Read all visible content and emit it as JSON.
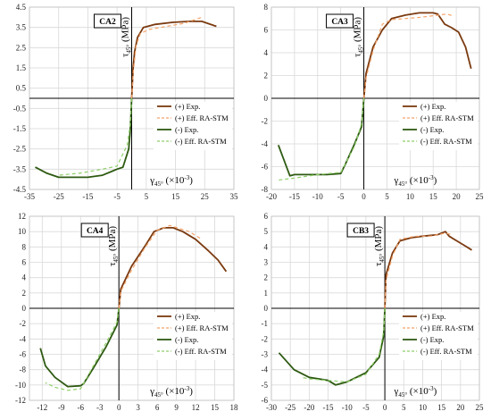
{
  "colors": {
    "pos_exp": "#7b3a10",
    "pos_eff": "#f4a46a",
    "neg_exp": "#2e5a12",
    "neg_eff": "#8fcf6a",
    "grid": "#d9d9d9",
    "axis": "#000000"
  },
  "chart_data": [
    {
      "type": "line",
      "label": "CA2",
      "ylabel_main": "τ",
      "ylabel_sub": "45°",
      "ylabel_unit": " (MPa)",
      "xlabel_main": "γ",
      "xlabel_sub": "45°",
      "xlabel_unit": " (×10",
      "xlabel_exp": "-3",
      "xlabel_close": ")",
      "xlim": [
        -35,
        35
      ],
      "ylim": [
        -4.5,
        4.5
      ],
      "xticks": [
        -35,
        -25,
        -15,
        -5,
        5,
        15,
        25,
        35
      ],
      "yticks": [
        -4.5,
        -3.5,
        -2.5,
        -1.5,
        -0.5,
        0.5,
        1.5,
        2.5,
        3.5,
        4.5
      ],
      "legend": {
        "show": true,
        "placement": "center-right"
      },
      "series": [
        {
          "name": "(+) Exp.",
          "role": "pos_exp",
          "x": [
            0,
            0.5,
            1,
            2,
            4,
            8,
            14,
            20,
            24,
            29
          ],
          "y": [
            0,
            1.5,
            2.3,
            3.0,
            3.5,
            3.65,
            3.75,
            3.8,
            3.8,
            3.55
          ]
        },
        {
          "name": "(+) Eff. RA-STM",
          "role": "pos_eff",
          "x": [
            0,
            0.5,
            1.5,
            3,
            6,
            12,
            18,
            24
          ],
          "y": [
            0,
            1.2,
            2.6,
            3.2,
            3.4,
            3.55,
            3.7,
            4.0
          ]
        },
        {
          "name": "(-) Exp.",
          "role": "neg_exp",
          "x": [
            0,
            -0.5,
            -1,
            -3,
            -5,
            -10,
            -15,
            -20,
            -25,
            -29,
            -33
          ],
          "y": [
            0,
            -1.6,
            -2.5,
            -3.4,
            -3.5,
            -3.8,
            -3.9,
            -3.9,
            -3.9,
            -3.7,
            -3.4
          ]
        },
        {
          "name": "(-) Eff. RA-STM",
          "role": "neg_eff",
          "x": [
            0,
            -0.5,
            -1.5,
            -5,
            -10,
            -18,
            -25
          ],
          "y": [
            0,
            -1.3,
            -2.3,
            -3.35,
            -3.5,
            -3.7,
            -3.8
          ]
        }
      ]
    },
    {
      "type": "line",
      "label": "CA3",
      "ylabel_main": "τ",
      "ylabel_sub": "45°",
      "ylabel_unit": " (MPa)",
      "xlabel_main": "γ",
      "xlabel_sub": "45°",
      "xlabel_unit": " (×10",
      "xlabel_exp": "-3",
      "xlabel_close": ")",
      "xlim": [
        -20,
        25
      ],
      "ylim": [
        -8,
        8
      ],
      "xticks": [
        -20,
        -15,
        -10,
        -5,
        0,
        5,
        10,
        15,
        20,
        25
      ],
      "yticks": [
        -8,
        -6,
        -4,
        -2,
        0,
        2,
        4,
        6,
        8
      ],
      "legend": {
        "show": true,
        "placement": "center-right"
      },
      "series": [
        {
          "name": "(+) Exp.",
          "role": "pos_exp",
          "x": [
            0,
            0.5,
            2,
            4,
            6,
            9,
            12,
            15,
            16,
            17.5,
            19,
            20.5,
            22,
            23.2
          ],
          "y": [
            0,
            2.2,
            4.5,
            6.0,
            7.0,
            7.3,
            7.5,
            7.5,
            7.4,
            6.5,
            6.2,
            5.8,
            4.5,
            2.6
          ]
        },
        {
          "name": "(+) Eff. RA-STM",
          "role": "pos_eff",
          "x": [
            0,
            0.5,
            2,
            4,
            6,
            12,
            18,
            19.5
          ],
          "y": [
            0,
            1.8,
            4.2,
            6.5,
            6.9,
            7.1,
            7.4,
            7.2
          ]
        },
        {
          "name": "(-) Exp.",
          "role": "neg_exp",
          "x": [
            0,
            -0.5,
            -2,
            -4,
            -5,
            -8,
            -12,
            -15,
            -16,
            -18.5
          ],
          "y": [
            0,
            -2.5,
            -4.0,
            -5.8,
            -6.6,
            -6.7,
            -6.7,
            -6.7,
            -6.8,
            -4.1
          ]
        },
        {
          "name": "(-) Eff. RA-STM",
          "role": "neg_eff",
          "x": [
            0,
            -0.5,
            -2,
            -5,
            -10,
            -15,
            -19
          ],
          "y": [
            0,
            -2.2,
            -4.2,
            -6.5,
            -6.7,
            -7.0,
            -7.2
          ]
        }
      ]
    },
    {
      "type": "line",
      "label": "CA4",
      "ylabel_main": "τ",
      "ylabel_sub": "45°",
      "ylabel_unit": " (MPa)",
      "xlabel_main": "γ",
      "xlabel_sub": "45°",
      "xlabel_unit": " (×10",
      "xlabel_exp": "-3",
      "xlabel_close": ")",
      "xlim": [
        -14,
        18
      ],
      "ylim": [
        -12,
        12
      ],
      "xticks": [
        -12,
        -9,
        -6,
        -3,
        0,
        3,
        6,
        9,
        12,
        15,
        18
      ],
      "yticks": [
        -12,
        -10,
        -8,
        -6,
        -4,
        -2,
        0,
        2,
        4,
        6,
        8,
        10,
        12
      ],
      "legend": {
        "show": true,
        "placement": "center-right"
      },
      "series": [
        {
          "name": "(+) Exp.",
          "role": "pos_exp",
          "x": [
            0,
            0.3,
            2,
            4,
            5.5,
            7,
            8.5,
            10,
            12,
            14,
            15.5,
            16.8
          ],
          "y": [
            0,
            2.5,
            5.5,
            8.0,
            10.0,
            10.5,
            10.5,
            10.0,
            9.0,
            7.5,
            6.3,
            4.8
          ]
        },
        {
          "name": "(+) Eff. RA-STM",
          "role": "pos_eff",
          "x": [
            0,
            0.3,
            2,
            4,
            6,
            8,
            11,
            13
          ],
          "y": [
            0,
            2.2,
            5.0,
            7.8,
            10.2,
            10.8,
            10.0,
            9.0
          ]
        },
        {
          "name": "(-) Exp.",
          "role": "neg_exp",
          "x": [
            0,
            -0.3,
            -2,
            -4,
            -5.5,
            -6,
            -8,
            -10,
            -11.5,
            -12.3
          ],
          "y": [
            0,
            -2.2,
            -5.0,
            -7.8,
            -9.8,
            -10.1,
            -10.2,
            -9.0,
            -7.5,
            -5.2
          ]
        },
        {
          "name": "(-) Eff. RA-STM",
          "role": "neg_eff",
          "x": [
            0,
            -0.3,
            -2,
            -4,
            -6,
            -8,
            -10,
            -11.5
          ],
          "y": [
            0,
            -1.8,
            -4.5,
            -7.5,
            -10.5,
            -10.7,
            -10.3,
            -9.7
          ]
        }
      ]
    },
    {
      "type": "line",
      "label": "CB3",
      "ylabel_main": "τ",
      "ylabel_sub": "45°",
      "ylabel_unit": " (MPa)",
      "xlabel_main": "γ",
      "xlabel_sub": "45°",
      "xlabel_unit": " (×10",
      "xlabel_exp": "-3",
      "xlabel_close": ")",
      "xlim": [
        -30,
        25
      ],
      "ylim": [
        -6,
        6
      ],
      "xticks": [
        -30,
        -25,
        -20,
        -15,
        -10,
        -5,
        0,
        5,
        10,
        15,
        20,
        25
      ],
      "yticks": [
        -6,
        -5,
        -4,
        -3,
        -2,
        -1,
        0,
        1,
        2,
        3,
        4,
        5,
        6
      ],
      "legend": {
        "show": true,
        "placement": "center-right"
      },
      "series": [
        {
          "name": "(+) Exp.",
          "role": "pos_exp",
          "x": [
            0,
            0.3,
            2,
            4,
            7,
            10,
            14,
            16,
            17,
            19,
            21,
            23
          ],
          "y": [
            0,
            2.2,
            3.6,
            4.4,
            4.6,
            4.7,
            4.8,
            5.0,
            4.7,
            4.4,
            4.1,
            3.8
          ]
        },
        {
          "name": "(+) Eff. RA-STM",
          "role": "pos_eff",
          "x": [
            0,
            0.3,
            2,
            4,
            8,
            12,
            16,
            18
          ],
          "y": [
            0,
            1.8,
            3.4,
            4.5,
            4.7,
            4.7,
            4.9,
            4.8
          ]
        },
        {
          "name": "(-) Exp.",
          "role": "neg_exp",
          "x": [
            0,
            -0.3,
            -1.5,
            -5,
            -10,
            -13,
            -15,
            -20,
            -24,
            -28
          ],
          "y": [
            0,
            -1.8,
            -3.2,
            -4.2,
            -4.8,
            -5.0,
            -4.7,
            -4.5,
            -4.0,
            -2.9
          ]
        },
        {
          "name": "(-) Eff. RA-STM",
          "role": "neg_eff",
          "x": [
            0,
            -0.3,
            -1.5,
            -5,
            -10,
            -15,
            -20,
            -22
          ],
          "y": [
            0,
            -1.5,
            -3.0,
            -4.3,
            -4.8,
            -4.7,
            -4.6,
            -4.5
          ]
        }
      ]
    }
  ]
}
